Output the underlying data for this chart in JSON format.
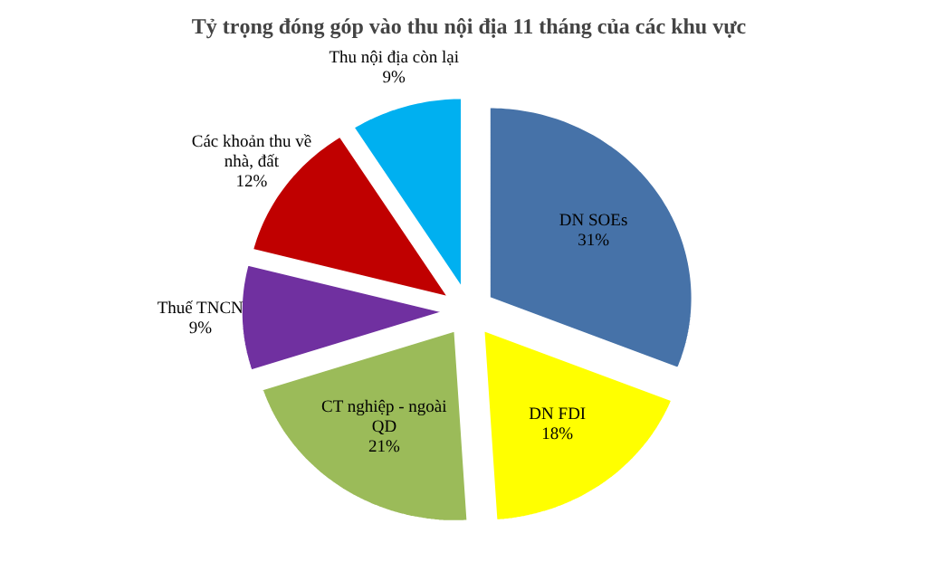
{
  "chart_data": {
    "type": "pie",
    "title": "Tỷ trọng đóng góp vào thu nội địa 11 tháng của các khu vực",
    "categories": [
      "DN SOEs",
      "DN FDI",
      "CT nghiệp - ngoài QD",
      "Thuế TNCN",
      "Các khoản thu về nhà, đất",
      "Thu nội địa còn lại"
    ],
    "values": [
      31,
      18,
      21,
      9,
      12,
      9
    ],
    "colors": [
      "#4672a8",
      "#ffff00",
      "#9bbb59",
      "#7030a0",
      "#c00000",
      "#00b0f0"
    ],
    "value_labels": [
      "31%",
      "18%",
      "21%",
      "9%",
      "12%",
      "9%"
    ]
  }
}
